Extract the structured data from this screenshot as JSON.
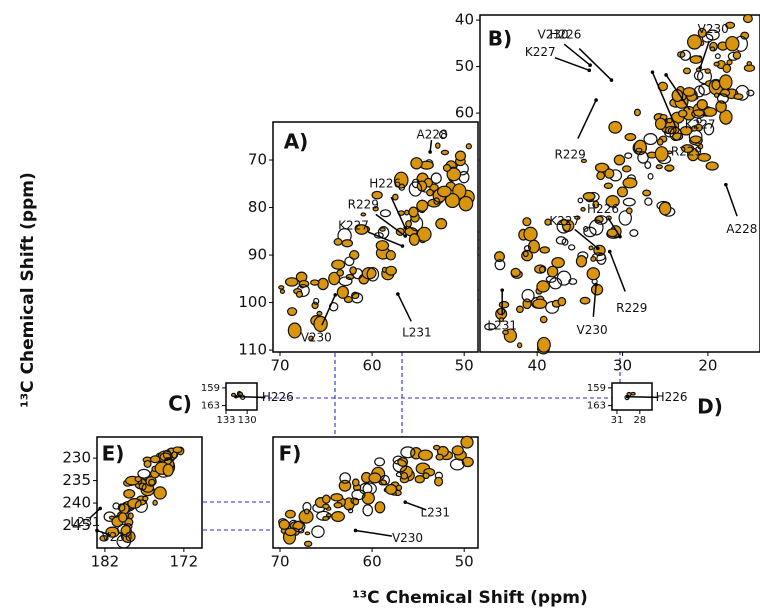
{
  "x_axis_title": "¹³C Chemical Shift (ppm)",
  "y_axis_title": "¹³C Chemical Shift (ppm)",
  "panels": [
    {
      "label": "A)",
      "xlim": [
        70.76,
        48.5
      ],
      "ylim": [
        62,
        110.4
      ],
      "xticks": [
        70,
        60,
        50
      ],
      "yticks": [
        70,
        80,
        90,
        100,
        110
      ],
      "annotations": [
        {
          "label": "A228",
          "x": 53.7,
          "y": 68.3
        },
        {
          "label": "H226",
          "x": 56.4,
          "y": 84.3
        },
        {
          "label": "R229",
          "x": 56.4,
          "y": 86
        },
        {
          "label": "K227",
          "x": 56.7,
          "y": 88.1
        },
        {
          "label": "V230",
          "x": 64,
          "y": 98.4
        },
        {
          "label": "L231",
          "x": 57.2,
          "y": 98.2
        }
      ]
    },
    {
      "label": "B)",
      "xlim": [
        46.7,
        13.9
      ],
      "ylim": [
        38.9,
        111.4
      ],
      "xticks": [
        40,
        30,
        20
      ],
      "yticks": [
        40,
        50,
        60
      ],
      "annotations": [
        {
          "label": "H226",
          "x": 31.3,
          "y": 52.9
        },
        {
          "label": "V230",
          "x": 33.8,
          "y": 49.7
        },
        {
          "label": "K227",
          "x": 33.9,
          "y": 50.8
        },
        {
          "label": "V230",
          "x": 20.9,
          "y": 50.2
        },
        {
          "label": "K227",
          "x": 24.9,
          "y": 51.8
        },
        {
          "label": "R229",
          "x": 26.5,
          "y": 51.2
        },
        {
          "label": "R229",
          "x": 33.1,
          "y": 57.2
        },
        {
          "label": "A228",
          "x": 17.9,
          "y": 75.4
        },
        {
          "label": "H226",
          "x": 30.3,
          "y": 86.6
        },
        {
          "label": "K227",
          "x": 32.9,
          "y": 89.1
        },
        {
          "label": "R229",
          "x": 31.5,
          "y": 89.8
        },
        {
          "label": "V230",
          "x": 33.1,
          "y": 96.9
        },
        {
          "label": "L231",
          "x": 44.1,
          "y": 98.1
        }
      ]
    },
    {
      "label": "C)",
      "xlim": [
        133,
        128.6
      ],
      "ylim": [
        157.9,
        164
      ],
      "xticks": [
        133,
        130
      ],
      "yticks": [
        159,
        163
      ],
      "annotations": [
        {
          "label": "H226",
          "x": 131.6,
          "y": 161
        }
      ]
    },
    {
      "label": "D)",
      "xlim": [
        31.65,
        26.4
      ],
      "ylim": [
        157.9,
        164
      ],
      "xticks": [
        31,
        28
      ],
      "yticks": [
        159,
        163
      ],
      "annotations": [
        {
          "label": "H226",
          "x": 29.6,
          "y": 161
        }
      ]
    },
    {
      "label": "E)",
      "xlim": [
        183,
        169.7
      ],
      "ylim": [
        225.3,
        250
      ],
      "xticks": [
        182,
        172
      ],
      "yticks": [
        230,
        235,
        240,
        245
      ],
      "annotations": [
        {
          "label": "L231",
          "x": 182.6,
          "y": 241.2
        },
        {
          "label": "V230",
          "x": 183,
          "y": 246.1
        }
      ]
    },
    {
      "label": "F)",
      "xlim": [
        70.76,
        48.5
      ],
      "ylim": [
        225.3,
        250
      ],
      "xticks": [
        70,
        60,
        50
      ],
      "yticks": [],
      "annotations": [
        {
          "label": "L231",
          "x": 56.4,
          "y": 239.8
        },
        {
          "label": "V230",
          "x": 61.8,
          "y": 246.1
        }
      ]
    }
  ]
}
